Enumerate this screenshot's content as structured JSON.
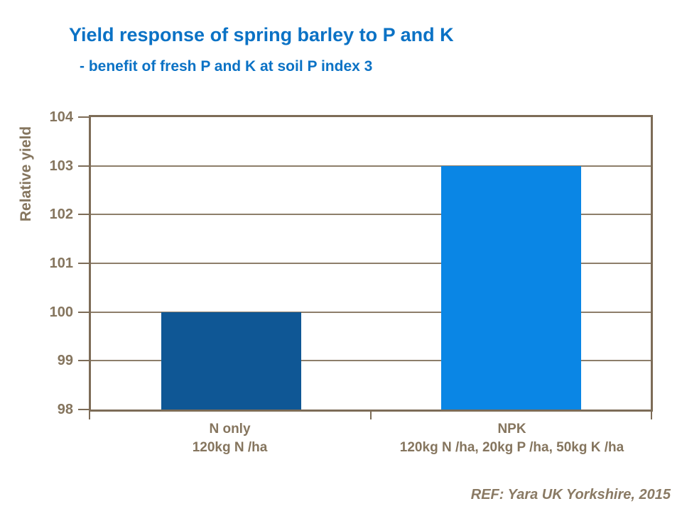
{
  "header": {
    "title": "Yield response of spring barley to P and K",
    "subtitle": "- benefit of fresh P and K at soil P index 3"
  },
  "footer": {
    "ref": "REF: Yara UK Yorkshire, 2015"
  },
  "colors": {
    "title_blue": "#0B72C5",
    "bar_dark_blue": "#0F5795",
    "bar_light_blue": "#0A86E5",
    "axis_border": "#7D6C57",
    "gridline": "#8D7E6A",
    "axis_label": "#85755E",
    "reference_text": "#8A7A64"
  },
  "chart_data": {
    "type": "bar",
    "title": "Yield response of spring barley to P and K",
    "subtitle": "- benefit of fresh P and K at soil P index 3",
    "xlabel": "",
    "ylabel": "Relative yield",
    "ylim": [
      98,
      104
    ],
    "yticks": [
      98,
      99,
      100,
      101,
      102,
      103,
      104
    ],
    "grid": true,
    "legend": "none",
    "categories": [
      {
        "label": "N only",
        "sublabel": "120kg N /ha"
      },
      {
        "label": "NPK",
        "sublabel": "120kg N /ha, 20kg P /ha, 50kg K /ha"
      }
    ],
    "values": [
      100,
      103
    ],
    "bar_colors": [
      "#0F5795",
      "#0A86E5"
    ],
    "reference": "REF: Yara UK Yorkshire, 2015"
  }
}
